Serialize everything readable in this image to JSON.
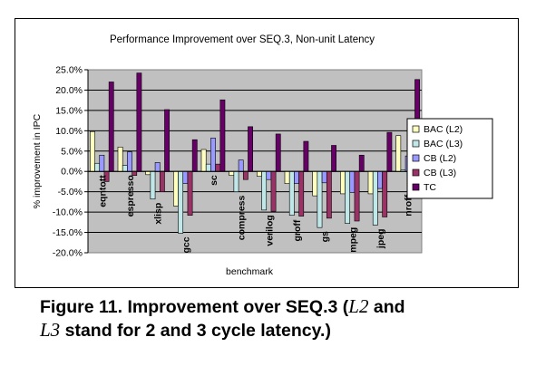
{
  "chart_data": {
    "type": "bar",
    "title": "Performance Improvement over SEQ.3, Non-unit Latency",
    "xlabel": "benchmark",
    "ylabel": "% improvement in IPC",
    "ylim": [
      -20,
      25
    ],
    "yticks": [
      25,
      20,
      15,
      10,
      5,
      0,
      -5,
      -10,
      -15,
      -20
    ],
    "ytick_labels": [
      "25.0%",
      "20.0%",
      "15.0%",
      "10.0%",
      "5.0%",
      "0.0%",
      "-5.0%",
      "-10.0%",
      "-15.0%",
      "-20.0%"
    ],
    "grid": true,
    "legend_position": "right",
    "categories": [
      "eqntott",
      "espresso",
      "xlisp",
      "gcc",
      "sc",
      "compress",
      "verilog",
      "groff",
      "gs",
      "mpeg",
      "jpeg",
      "nroff"
    ],
    "series": [
      {
        "name": "BAC (L2)",
        "color": "#FFFFC0",
        "values": [
          9.8,
          6.0,
          -0.8,
          -8.5,
          5.4,
          -1.0,
          -1.2,
          -3.0,
          -6.0,
          -5.5,
          -5.5,
          8.8
        ]
      },
      {
        "name": "BAC (L3)",
        "color": "#C0E8E8",
        "values": [
          2.0,
          1.5,
          -6.8,
          -15.2,
          1.8,
          -5.0,
          -9.5,
          -10.8,
          -13.8,
          -12.8,
          -13.2,
          0.4
        ]
      },
      {
        "name": "CB (L2)",
        "color": "#9999FF",
        "values": [
          4.0,
          4.8,
          2.2,
          -3.0,
          8.2,
          2.8,
          -2.0,
          -3.0,
          -2.8,
          -5.2,
          -4.2,
          3.8
        ]
      },
      {
        "name": "CB (L3)",
        "color": "#993366",
        "values": [
          -2.5,
          -1.0,
          -5.0,
          -10.8,
          1.8,
          -2.0,
          -9.8,
          -11.0,
          -11.5,
          -12.2,
          -11.2,
          -4.8
        ]
      },
      {
        "name": "TC",
        "color": "#660066",
        "values": [
          22.0,
          24.2,
          15.2,
          7.8,
          17.6,
          11.0,
          9.2,
          7.4,
          6.4,
          4.0,
          9.6,
          22.6
        ]
      }
    ]
  },
  "caption": {
    "prefix": "Figure 11. Improvement over SEQ.3 (",
    "l2": "L2",
    "and1": " and",
    "l3": "L3",
    "suffix": " stand for 2 and 3 cycle latency.)"
  }
}
